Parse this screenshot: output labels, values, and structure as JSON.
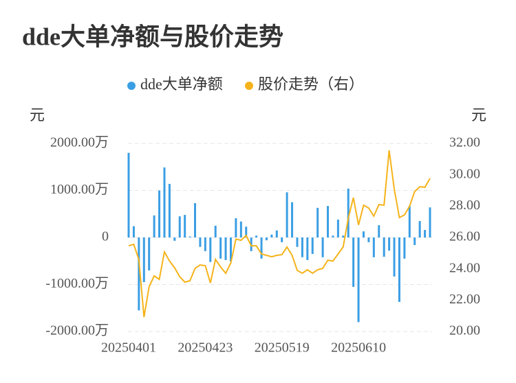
{
  "chart_data": {
    "type": "bar-line",
    "title": "dde大单净额与股价走势",
    "y_label": "元",
    "y2_label": "元",
    "categories": [
      "20250401",
      null,
      null,
      null,
      null,
      null,
      null,
      null,
      null,
      null,
      null,
      null,
      null,
      null,
      null,
      "20250423",
      null,
      null,
      null,
      null,
      null,
      null,
      null,
      null,
      null,
      null,
      null,
      null,
      null,
      null,
      "20250519",
      null,
      null,
      null,
      null,
      null,
      null,
      null,
      null,
      null,
      null,
      null,
      null,
      null,
      null,
      "20250610",
      null,
      null,
      null,
      null,
      null,
      null,
      null,
      null,
      null,
      null,
      null,
      null,
      null,
      null
    ],
    "series": [
      {
        "name": "dde大单净额",
        "color": "#3a9ee4",
        "kind": "bar",
        "values": [
          1800,
          240,
          -1550,
          -950,
          -700,
          470,
          1000,
          1490,
          1140,
          -70,
          450,
          480,
          20,
          730,
          -200,
          -290,
          -520,
          250,
          -450,
          -480,
          -510,
          410,
          340,
          230,
          -290,
          40,
          -450,
          -60,
          60,
          150,
          -100,
          960,
          750,
          -200,
          -420,
          -480,
          -350,
          630,
          -420,
          670,
          40,
          380,
          40,
          1040,
          -1050,
          -1800,
          130,
          -100,
          -420,
          260,
          -410,
          -280,
          -830,
          -1370,
          -450,
          670,
          -160,
          350,
          160,
          640
        ]
      },
      {
        "name": "股价走势（右）",
        "color": "#f5b31a",
        "kind": "line",
        "axis": "y2",
        "values": [
          25.47,
          25.56,
          24.6,
          20.92,
          22.85,
          23.55,
          23.33,
          25.08,
          24.5,
          24.07,
          23.5,
          23.15,
          23.24,
          24.03,
          24.25,
          24.2,
          23.1,
          24.6,
          24.12,
          23.72,
          24.38,
          25.9,
          25.82,
          26.13,
          25.47,
          25.47,
          24.95,
          24.86,
          24.77,
          24.86,
          24.9,
          25.39,
          24.86,
          23.9,
          23.72,
          23.94,
          23.72,
          23.94,
          24.03,
          24.55,
          24.5,
          24.95,
          25.39,
          27.23,
          28.54,
          26.8,
          28.06,
          27.88,
          27.36,
          28.1,
          28.06,
          31.56,
          29.1,
          27.27,
          27.44,
          28.0,
          28.93,
          29.24,
          29.2,
          29.77
        ]
      }
    ],
    "ylim": [
      -2000,
      2000
    ],
    "yticks": [
      {
        "value": -2000,
        "label": "-2000.00万"
      },
      {
        "value": -1000,
        "label": "-1000.00万"
      },
      0,
      {
        "value": 1000,
        "label": "1000.00万"
      },
      {
        "value": 2000,
        "label": "2000.00万"
      }
    ],
    "y2lim": [
      20,
      32
    ],
    "y2ticks": [
      {
        "value": 20,
        "label": "20.00"
      },
      {
        "value": 22,
        "label": "22.00"
      },
      {
        "value": 24,
        "label": "24.00"
      },
      {
        "value": 26,
        "label": "26.00"
      },
      {
        "value": 28,
        "label": "28.00"
      },
      {
        "value": 30,
        "label": "30.00"
      },
      {
        "value": 32,
        "label": "32.00"
      }
    ],
    "grid": true,
    "legend": "top"
  }
}
